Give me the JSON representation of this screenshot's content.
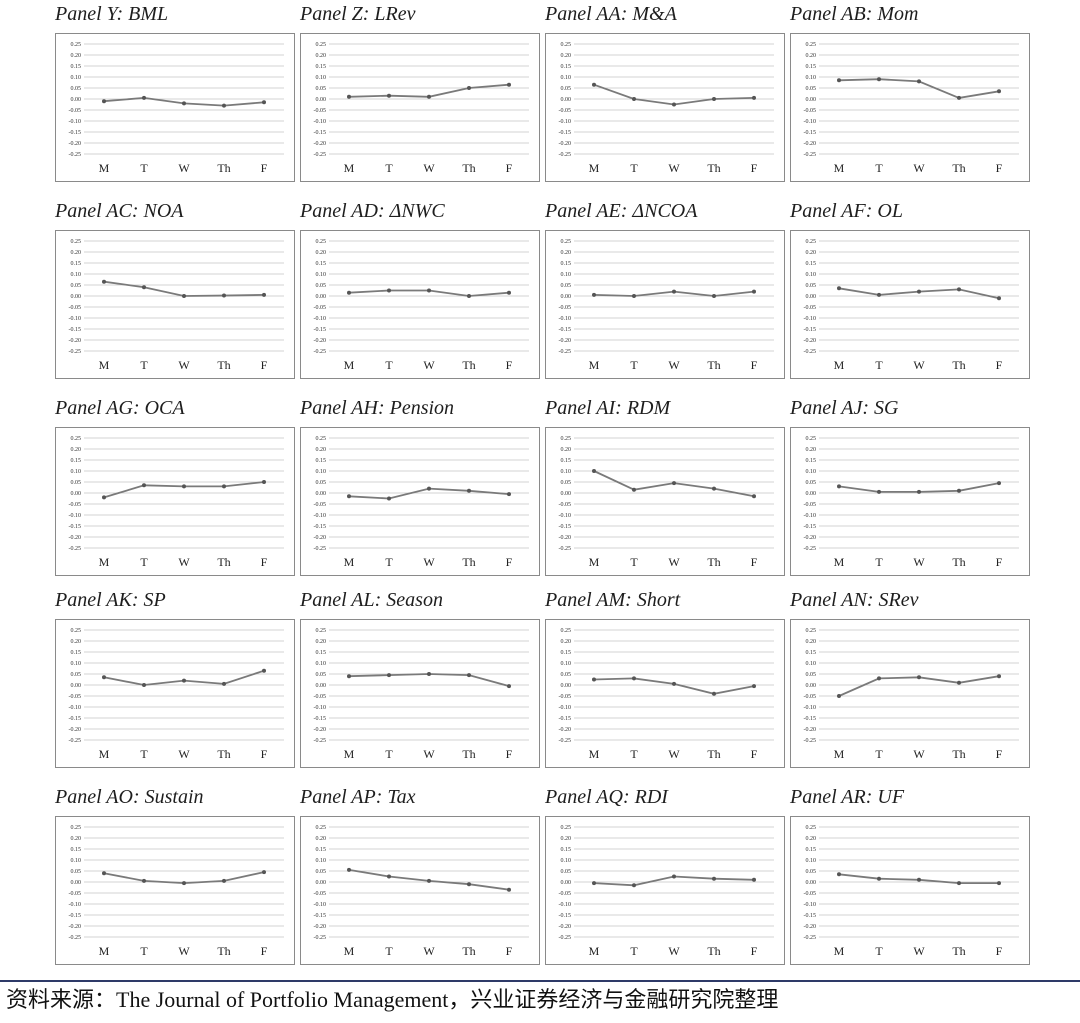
{
  "source_note": "资料来源：The Journal of Portfolio Management，兴业证券经济与金融研究院整理",
  "colors": {
    "line": "#7a7a7a",
    "grid": "#c4c4c4",
    "frame": "#8a8a8a",
    "footer_rule": "#2e3a68"
  },
  "chart_data": [
    {
      "type": "line",
      "title": "Panel Y: BML",
      "categories": [
        "M",
        "T",
        "W",
        "Th",
        "F"
      ],
      "values": [
        -0.01,
        0.005,
        -0.02,
        -0.03,
        -0.015
      ],
      "ylim": [
        -0.25,
        0.25
      ],
      "yticks": [
        "0.25",
        "0.20",
        "0.15",
        "0.10",
        "0.05",
        "0.00",
        "-0.05",
        "-0.10",
        "-0.15",
        "-0.20",
        "-0.25"
      ],
      "grid": true
    },
    {
      "type": "line",
      "title": "Panel Z: LRev",
      "categories": [
        "M",
        "T",
        "W",
        "Th",
        "F"
      ],
      "values": [
        0.01,
        0.015,
        0.01,
        0.05,
        0.065
      ],
      "ylim": [
        -0.25,
        0.25
      ],
      "yticks": [
        "0.25",
        "0.20",
        "0.15",
        "0.10",
        "0.05",
        "0.00",
        "-0.05",
        "-0.10",
        "-0.15",
        "-0.20",
        "-0.25"
      ],
      "grid": true
    },
    {
      "type": "line",
      "title": "Panel AA: M&A",
      "categories": [
        "M",
        "T",
        "W",
        "Th",
        "F"
      ],
      "values": [
        0.065,
        0.0,
        -0.025,
        0.0,
        0.005
      ],
      "ylim": [
        -0.25,
        0.25
      ],
      "yticks": [
        "0.25",
        "0.20",
        "0.15",
        "0.10",
        "0.05",
        "0.00",
        "-0.05",
        "-0.10",
        "-0.15",
        "-0.20",
        "-0.25"
      ],
      "grid": true
    },
    {
      "type": "line",
      "title": "Panel AB: Mom",
      "categories": [
        "M",
        "T",
        "W",
        "Th",
        "F"
      ],
      "values": [
        0.085,
        0.09,
        0.08,
        0.005,
        0.035
      ],
      "ylim": [
        -0.25,
        0.25
      ],
      "yticks": [
        "0.25",
        "0.20",
        "0.15",
        "0.10",
        "0.05",
        "0.00",
        "-0.05",
        "-0.10",
        "-0.15",
        "-0.20",
        "-0.25"
      ],
      "grid": true
    },
    {
      "type": "line",
      "title": "Panel AC: NOA",
      "categories": [
        "M",
        "T",
        "W",
        "Th",
        "F"
      ],
      "values": [
        0.065,
        0.04,
        0.0,
        0.002,
        0.005
      ],
      "ylim": [
        -0.25,
        0.25
      ],
      "yticks": [
        "0.25",
        "0.20",
        "0.15",
        "0.10",
        "0.05",
        "0.00",
        "-0.05",
        "-0.10",
        "-0.15",
        "-0.20",
        "-0.25"
      ],
      "grid": true
    },
    {
      "type": "line",
      "title": "Panel AD: ΔNWC",
      "categories": [
        "M",
        "T",
        "W",
        "Th",
        "F"
      ],
      "values": [
        0.015,
        0.025,
        0.025,
        0.0,
        0.015
      ],
      "ylim": [
        -0.25,
        0.25
      ],
      "yticks": [
        "0.25",
        "0.20",
        "0.15",
        "0.10",
        "0.05",
        "0.00",
        "-0.05",
        "-0.10",
        "-0.15",
        "-0.20",
        "-0.25"
      ],
      "grid": true
    },
    {
      "type": "line",
      "title": "Panel AE: ΔNCOA",
      "categories": [
        "M",
        "T",
        "W",
        "Th",
        "F"
      ],
      "values": [
        0.005,
        0.0,
        0.02,
        0.0,
        0.02
      ],
      "ylim": [
        -0.25,
        0.25
      ],
      "yticks": [
        "0.25",
        "0.20",
        "0.15",
        "0.10",
        "0.05",
        "0.00",
        "-0.05",
        "-0.10",
        "-0.15",
        "-0.20",
        "-0.25"
      ],
      "grid": true
    },
    {
      "type": "line",
      "title": "Panel AF: OL",
      "categories": [
        "M",
        "T",
        "W",
        "Th",
        "F"
      ],
      "values": [
        0.035,
        0.005,
        0.02,
        0.03,
        -0.01
      ],
      "ylim": [
        -0.25,
        0.25
      ],
      "yticks": [
        "0.25",
        "0.20",
        "0.15",
        "0.10",
        "0.05",
        "0.00",
        "-0.05",
        "-0.10",
        "-0.15",
        "-0.20",
        "-0.25"
      ],
      "grid": true
    },
    {
      "type": "line",
      "title": "Panel AG: OCA",
      "categories": [
        "M",
        "T",
        "W",
        "Th",
        "F"
      ],
      "values": [
        -0.02,
        0.035,
        0.03,
        0.03,
        0.05
      ],
      "ylim": [
        -0.25,
        0.25
      ],
      "yticks": [
        "0.25",
        "0.20",
        "0.15",
        "0.10",
        "0.05",
        "0.00",
        "-0.05",
        "-0.10",
        "-0.15",
        "-0.20",
        "-0.25"
      ],
      "grid": true
    },
    {
      "type": "line",
      "title": "Panel AH: Pension",
      "categories": [
        "M",
        "T",
        "W",
        "Th",
        "F"
      ],
      "values": [
        -0.015,
        -0.025,
        0.02,
        0.01,
        -0.005
      ],
      "ylim": [
        -0.25,
        0.25
      ],
      "yticks": [
        "0.25",
        "0.20",
        "0.15",
        "0.10",
        "0.05",
        "0.00",
        "-0.05",
        "-0.10",
        "-0.15",
        "-0.20",
        "-0.25"
      ],
      "grid": true
    },
    {
      "type": "line",
      "title": "Panel AI: RDM",
      "categories": [
        "M",
        "T",
        "W",
        "Th",
        "F"
      ],
      "values": [
        0.1,
        0.015,
        0.045,
        0.02,
        -0.015
      ],
      "ylim": [
        -0.25,
        0.25
      ],
      "yticks": [
        "0.25",
        "0.20",
        "0.15",
        "0.10",
        "0.05",
        "0.00",
        "-0.05",
        "-0.10",
        "-0.15",
        "-0.20",
        "-0.25"
      ],
      "grid": true
    },
    {
      "type": "line",
      "title": "Panel AJ: SG",
      "categories": [
        "M",
        "T",
        "W",
        "Th",
        "F"
      ],
      "values": [
        0.03,
        0.005,
        0.005,
        0.01,
        0.045
      ],
      "ylim": [
        -0.25,
        0.25
      ],
      "yticks": [
        "0.25",
        "0.20",
        "0.15",
        "0.10",
        "0.05",
        "0.00",
        "-0.05",
        "-0.10",
        "-0.15",
        "-0.20",
        "-0.25"
      ],
      "grid": true
    },
    {
      "type": "line",
      "title": "Panel AK: SP",
      "categories": [
        "M",
        "T",
        "W",
        "Th",
        "F"
      ],
      "values": [
        0.035,
        0.0,
        0.02,
        0.005,
        0.065
      ],
      "ylim": [
        -0.25,
        0.25
      ],
      "yticks": [
        "0.25",
        "0.20",
        "0.15",
        "0.10",
        "0.05",
        "0.00",
        "-0.05",
        "-0.10",
        "-0.15",
        "-0.20",
        "-0.25"
      ],
      "grid": true
    },
    {
      "type": "line",
      "title": "Panel AL: Season",
      "categories": [
        "M",
        "T",
        "W",
        "Th",
        "F"
      ],
      "values": [
        0.04,
        0.045,
        0.05,
        0.045,
        -0.005
      ],
      "ylim": [
        -0.25,
        0.25
      ],
      "yticks": [
        "0.25",
        "0.20",
        "0.15",
        "0.10",
        "0.05",
        "0.00",
        "-0.05",
        "-0.10",
        "-0.15",
        "-0.20",
        "-0.25"
      ],
      "grid": true
    },
    {
      "type": "line",
      "title": "Panel AM: Short",
      "categories": [
        "M",
        "T",
        "W",
        "Th",
        "F"
      ],
      "values": [
        0.025,
        0.03,
        0.005,
        -0.04,
        -0.005
      ],
      "ylim": [
        -0.25,
        0.25
      ],
      "yticks": [
        "0.25",
        "0.20",
        "0.15",
        "0.10",
        "0.05",
        "0.00",
        "-0.05",
        "-0.10",
        "-0.15",
        "-0.20",
        "-0.25"
      ],
      "grid": true
    },
    {
      "type": "line",
      "title": "Panel AN: SRev",
      "categories": [
        "M",
        "T",
        "W",
        "Th",
        "F"
      ],
      "values": [
        -0.05,
        0.03,
        0.035,
        0.01,
        0.04
      ],
      "ylim": [
        -0.25,
        0.25
      ],
      "yticks": [
        "0.25",
        "0.20",
        "0.15",
        "0.10",
        "0.05",
        "0.00",
        "-0.05",
        "-0.10",
        "-0.15",
        "-0.20",
        "-0.25"
      ],
      "grid": true
    },
    {
      "type": "line",
      "title": "Panel AO: Sustain",
      "categories": [
        "M",
        "T",
        "W",
        "Th",
        "F"
      ],
      "values": [
        0.04,
        0.005,
        -0.005,
        0.005,
        0.045
      ],
      "ylim": [
        -0.25,
        0.25
      ],
      "yticks": [
        "0.25",
        "0.20",
        "0.15",
        "0.10",
        "0.05",
        "0.00",
        "-0.05",
        "-0.10",
        "-0.15",
        "-0.20",
        "-0.25"
      ],
      "grid": true
    },
    {
      "type": "line",
      "title": "Panel AP: Tax",
      "categories": [
        "M",
        "T",
        "W",
        "Th",
        "F"
      ],
      "values": [
        0.055,
        0.025,
        0.005,
        -0.01,
        -0.035
      ],
      "ylim": [
        -0.25,
        0.25
      ],
      "yticks": [
        "0.25",
        "0.20",
        "0.15",
        "0.10",
        "0.05",
        "0.00",
        "-0.05",
        "-0.10",
        "-0.15",
        "-0.20",
        "-0.25"
      ],
      "grid": true
    },
    {
      "type": "line",
      "title": "Panel AQ: RDI",
      "categories": [
        "M",
        "T",
        "W",
        "Th",
        "F"
      ],
      "values": [
        -0.005,
        -0.015,
        0.025,
        0.015,
        0.01
      ],
      "ylim": [
        -0.25,
        0.25
      ],
      "yticks": [
        "0.25",
        "0.20",
        "0.15",
        "0.10",
        "0.05",
        "0.00",
        "-0.05",
        "-0.10",
        "-0.15",
        "-0.20",
        "-0.25"
      ],
      "grid": true
    },
    {
      "type": "line",
      "title": "Panel AR: UF",
      "categories": [
        "M",
        "T",
        "W",
        "Th",
        "F"
      ],
      "values": [
        0.035,
        0.015,
        0.01,
        -0.005,
        -0.005
      ],
      "ylim": [
        -0.25,
        0.25
      ],
      "yticks": [
        "0.25",
        "0.20",
        "0.15",
        "0.10",
        "0.05",
        "0.00",
        "-0.05",
        "-0.10",
        "-0.15",
        "-0.20",
        "-0.25"
      ],
      "grid": true
    }
  ]
}
